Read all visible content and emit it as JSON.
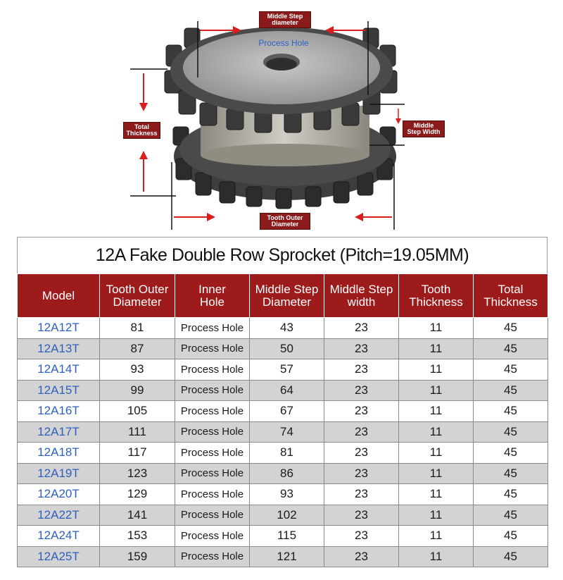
{
  "diagram": {
    "middle_step_diameter_label": [
      "Middle Step",
      "diameter"
    ],
    "process_hole_label": "Process Hole",
    "total_thickness_label": [
      "Total",
      "Thickness"
    ],
    "middle_step_width_label": [
      "Middle",
      "Step Width"
    ],
    "tooth_outer_diameter_label": [
      "Tooth Outer",
      "Diameter"
    ]
  },
  "table": {
    "title": "12A Fake Double Row Sprocket (Pitch=19.05MM)",
    "headers": [
      [
        "Model"
      ],
      [
        "Tooth Outer",
        "Diameter"
      ],
      [
        "Inner",
        "Hole"
      ],
      [
        "Middle Step",
        "Diameter"
      ],
      [
        "Middle Step",
        "width"
      ],
      [
        "Tooth",
        "Thickness"
      ],
      [
        "Total",
        "Thickness"
      ]
    ],
    "rows": [
      [
        "12A12T",
        "81",
        "Process Hole",
        "43",
        "23",
        "11",
        "45"
      ],
      [
        "12A13T",
        "87",
        "Process Hole",
        "50",
        "23",
        "11",
        "45"
      ],
      [
        "12A14T",
        "93",
        "Process Hole",
        "57",
        "23",
        "11",
        "45"
      ],
      [
        "12A15T",
        "99",
        "Process Hole",
        "64",
        "23",
        "11",
        "45"
      ],
      [
        "12A16T",
        "105",
        "Process Hole",
        "67",
        "23",
        "11",
        "45"
      ],
      [
        "12A17T",
        "111",
        "Process Hole",
        "74",
        "23",
        "11",
        "45"
      ],
      [
        "12A18T",
        "117",
        "Process Hole",
        "81",
        "23",
        "11",
        "45"
      ],
      [
        "12A19T",
        "123",
        "Process Hole",
        "86",
        "23",
        "11",
        "45"
      ],
      [
        "12A20T",
        "129",
        "Process Hole",
        "93",
        "23",
        "11",
        "45"
      ],
      [
        "12A22T",
        "141",
        "Process Hole",
        "102",
        "23",
        "11",
        "45"
      ],
      [
        "12A24T",
        "153",
        "Process Hole",
        "115",
        "23",
        "11",
        "45"
      ],
      [
        "12A25T",
        "159",
        "Process Hole",
        "121",
        "23",
        "11",
        "45"
      ]
    ]
  },
  "colors": {
    "header_red": "#9e1b1b",
    "model_blue": "#2e5fbf",
    "alt_row_gray": "#d3d3d3",
    "arrow_red": "#d81e1e"
  }
}
